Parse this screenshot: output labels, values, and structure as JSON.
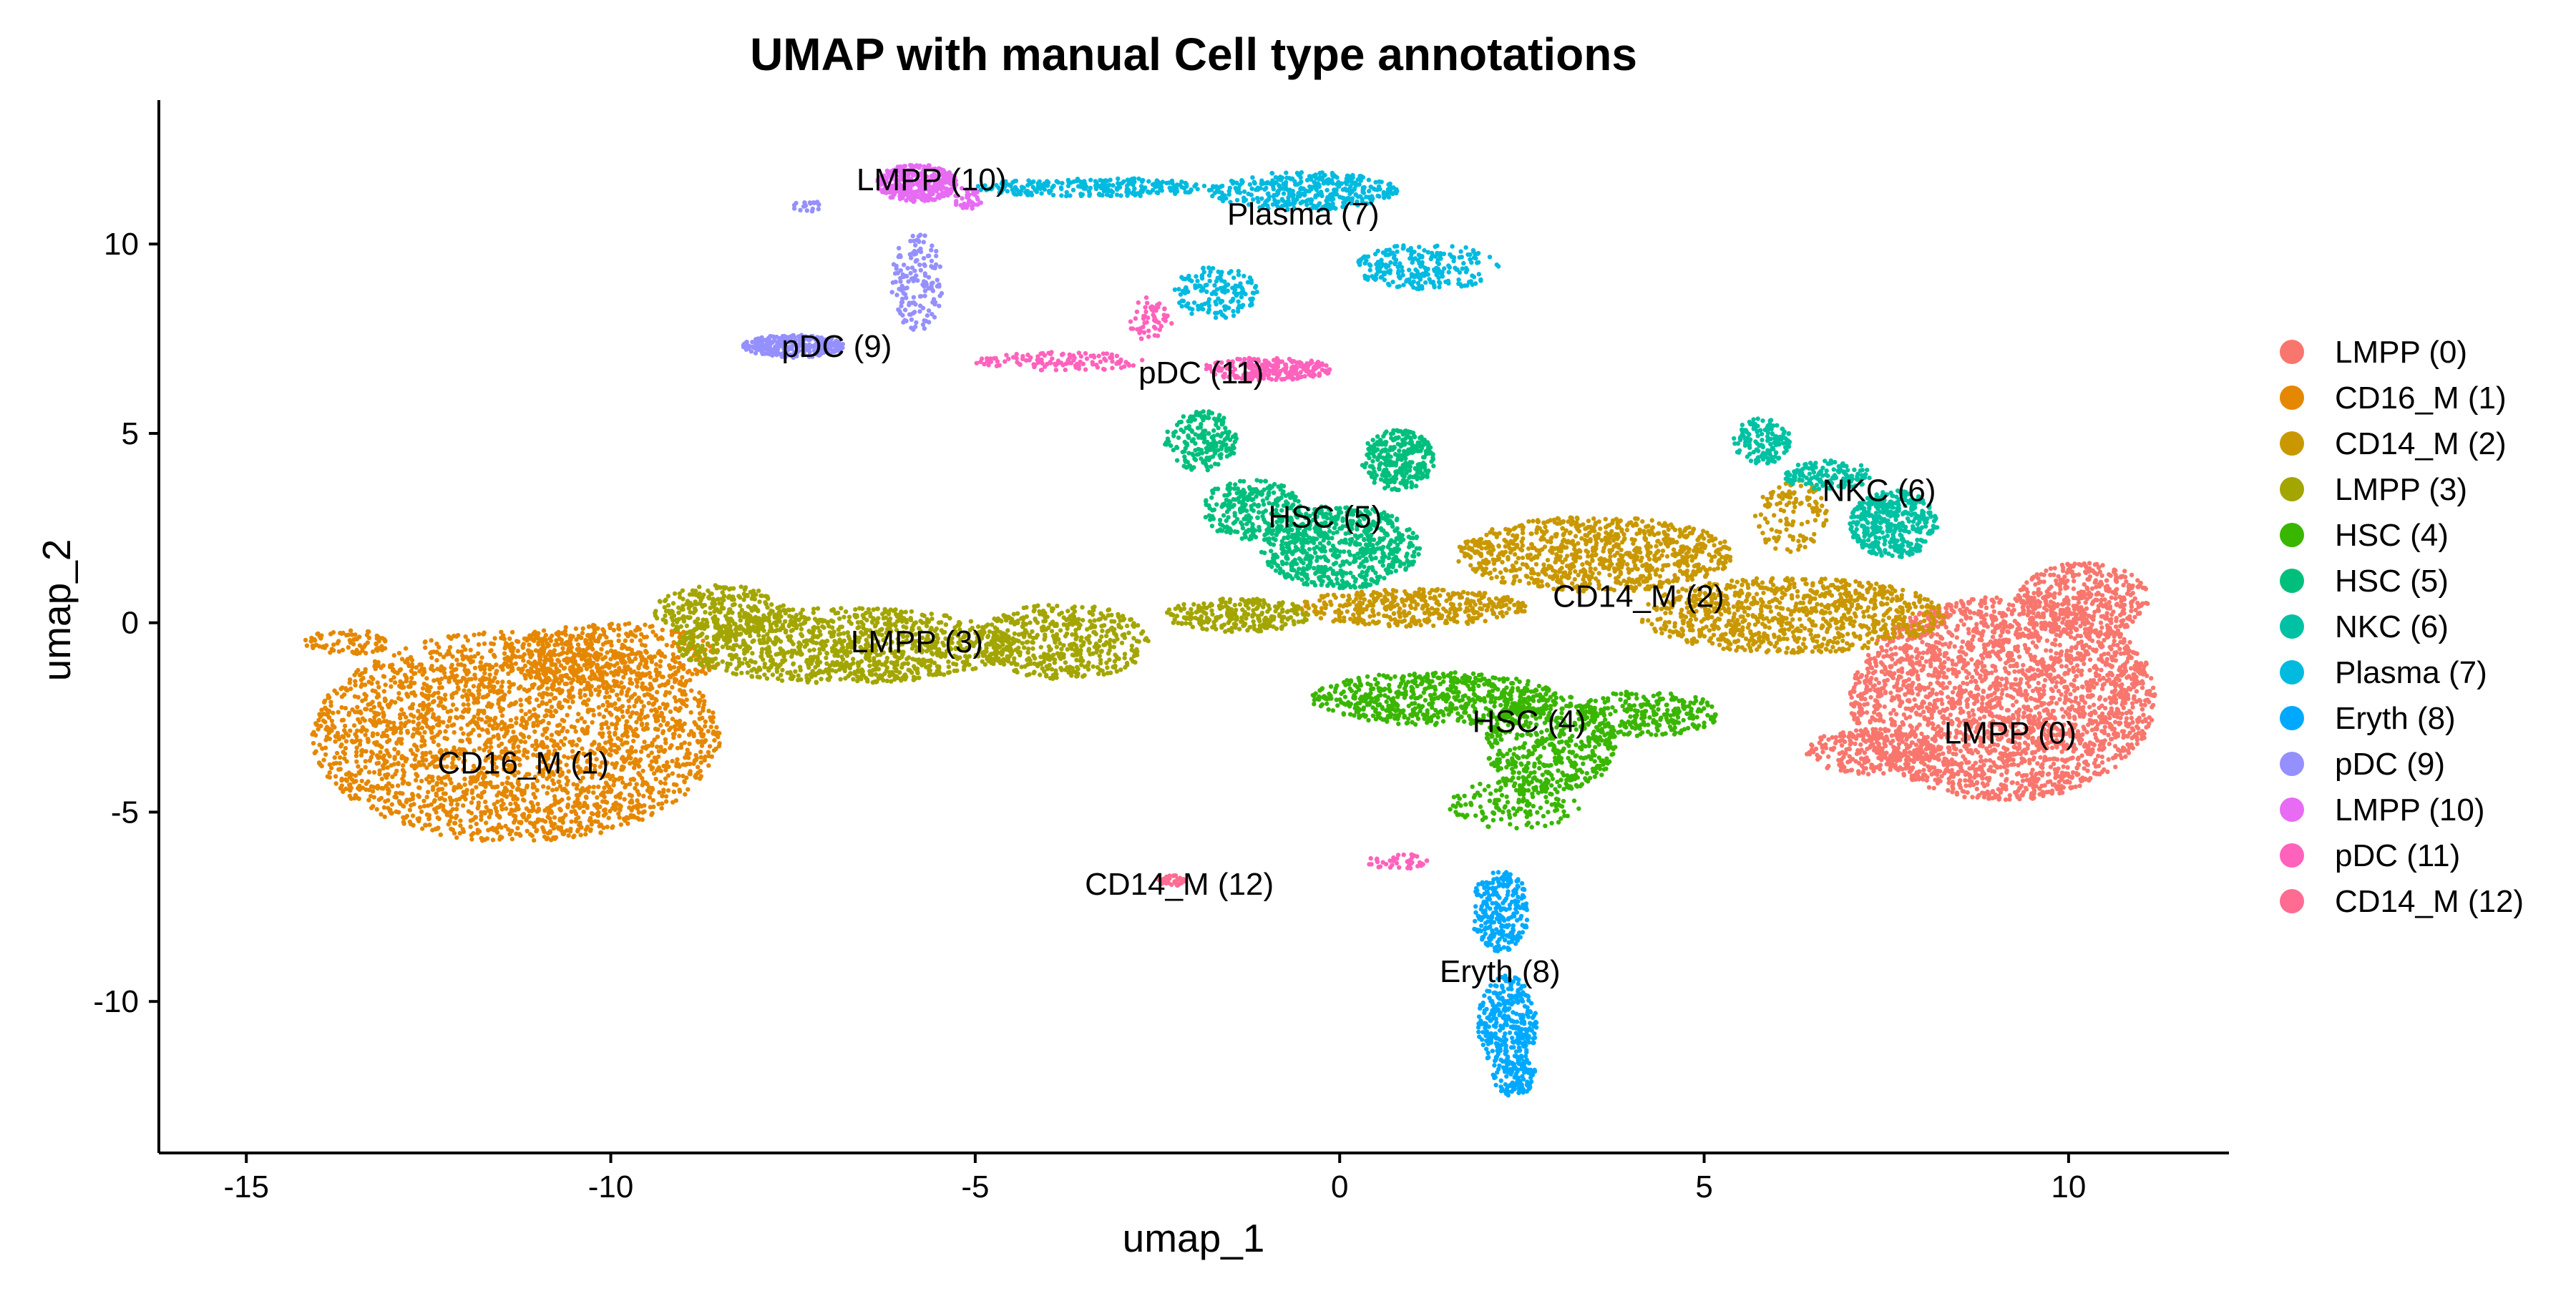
{
  "chart_data": {
    "type": "scatter",
    "title": "UMAP with manual Cell type annotations",
    "xlabel": "umap_1",
    "ylabel": "umap_2",
    "xlim": [
      -16.2,
      12.2
    ],
    "ylim": [
      -14.0,
      13.8
    ],
    "xticks": [
      -15,
      -10,
      -5,
      0,
      5,
      10
    ],
    "yticks": [
      -10,
      -5,
      0,
      5,
      10
    ],
    "xtick_labels": [
      "-15",
      "-10",
      "-5",
      "0",
      "5",
      "10"
    ],
    "ytick_labels": [
      "-10",
      "-5",
      "0",
      "5",
      "10"
    ],
    "grid": false,
    "legend_position": "right",
    "axis_color": "#000000",
    "series": [
      {
        "name": "LMPP (0)",
        "color": "#F8766D",
        "label_pos": [
          9.2,
          -2.9
        ],
        "blobs": [
          {
            "cx": 9.1,
            "cy": -2.0,
            "rx": 2.1,
            "ry": 2.7,
            "n": 2600
          },
          {
            "cx": 10.2,
            "cy": 0.6,
            "rx": 0.9,
            "ry": 1.0,
            "n": 400
          },
          {
            "cx": 7.3,
            "cy": -3.4,
            "rx": 0.9,
            "ry": 0.6,
            "n": 250
          }
        ]
      },
      {
        "name": "CD16_M (1)",
        "color": "#E58700",
        "label_pos": [
          -11.2,
          -3.7
        ],
        "blobs": [
          {
            "cx": -11.3,
            "cy": -3.0,
            "rx": 2.8,
            "ry": 2.8,
            "n": 2700
          },
          {
            "cx": -10.0,
            "cy": -0.9,
            "rx": 1.5,
            "ry": 0.9,
            "n": 400
          },
          {
            "cx": -13.6,
            "cy": -0.5,
            "rx": 0.6,
            "ry": 0.35,
            "n": 80
          }
        ]
      },
      {
        "name": "CD14_M (2)",
        "color": "#C99800",
        "label_pos": [
          4.1,
          0.7
        ],
        "blobs": [
          {
            "cx": 3.5,
            "cy": 1.8,
            "rx": 1.9,
            "ry": 1.0,
            "n": 900
          },
          {
            "cx": 6.2,
            "cy": 0.2,
            "rx": 2.1,
            "ry": 1.0,
            "n": 900
          },
          {
            "cx": 1.0,
            "cy": 0.4,
            "rx": 1.6,
            "ry": 0.5,
            "n": 400
          },
          {
            "cx": 6.2,
            "cy": 2.8,
            "rx": 0.5,
            "ry": 1.0,
            "n": 120
          }
        ]
      },
      {
        "name": "LMPP (3)",
        "color": "#A3A500",
        "label_pos": [
          -5.8,
          -0.5
        ],
        "blobs": [
          {
            "cx": -6.8,
            "cy": -0.6,
            "rx": 2.3,
            "ry": 1.0,
            "n": 1100
          },
          {
            "cx": -3.8,
            "cy": -0.5,
            "rx": 1.2,
            "ry": 1.0,
            "n": 500
          },
          {
            "cx": -8.5,
            "cy": 0.3,
            "rx": 0.9,
            "ry": 0.7,
            "n": 300
          },
          {
            "cx": -1.4,
            "cy": 0.2,
            "rx": 1.0,
            "ry": 0.45,
            "n": 250
          }
        ]
      },
      {
        "name": "HSC (4)",
        "color": "#39B600",
        "label_pos": [
          2.6,
          -2.6
        ],
        "blobs": [
          {
            "cx": 1.3,
            "cy": -2.0,
            "rx": 1.7,
            "ry": 0.7,
            "n": 600
          },
          {
            "cx": 2.9,
            "cy": -3.2,
            "rx": 0.9,
            "ry": 1.3,
            "n": 500
          },
          {
            "cx": 4.2,
            "cy": -2.4,
            "rx": 1.0,
            "ry": 0.6,
            "n": 250
          },
          {
            "cx": 2.4,
            "cy": -4.8,
            "rx": 0.9,
            "ry": 0.7,
            "n": 150
          }
        ]
      },
      {
        "name": "HSC (5)",
        "color": "#00BF7D",
        "label_pos": [
          -0.2,
          2.8
        ],
        "blobs": [
          {
            "cx": 0.0,
            "cy": 2.0,
            "rx": 1.1,
            "ry": 1.1,
            "n": 700
          },
          {
            "cx": 0.8,
            "cy": 4.3,
            "rx": 0.5,
            "ry": 0.8,
            "n": 300
          },
          {
            "cx": -1.9,
            "cy": 4.8,
            "rx": 0.5,
            "ry": 0.8,
            "n": 200
          },
          {
            "cx": -1.2,
            "cy": 3.0,
            "rx": 0.7,
            "ry": 0.8,
            "n": 250
          }
        ]
      },
      {
        "name": "NKC (6)",
        "color": "#00C1A3",
        "label_pos": [
          7.4,
          3.5
        ],
        "blobs": [
          {
            "cx": 7.6,
            "cy": 2.6,
            "rx": 0.6,
            "ry": 0.9,
            "n": 400
          },
          {
            "cx": 5.8,
            "cy": 4.8,
            "rx": 0.4,
            "ry": 0.6,
            "n": 150
          },
          {
            "cx": 6.7,
            "cy": 3.9,
            "rx": 0.6,
            "ry": 0.4,
            "n": 150
          }
        ]
      },
      {
        "name": "Plasma (7)",
        "color": "#00BAE0",
        "label_pos": [
          -0.5,
          10.8
        ],
        "blobs": [
          {
            "cx": -0.5,
            "cy": 11.4,
            "rx": 1.3,
            "ry": 0.5,
            "n": 400
          },
          {
            "cx": -3.4,
            "cy": 11.5,
            "rx": 1.6,
            "ry": 0.25,
            "n": 250
          },
          {
            "cx": 1.2,
            "cy": 9.4,
            "rx": 1.0,
            "ry": 0.6,
            "n": 250
          },
          {
            "cx": -1.7,
            "cy": 8.7,
            "rx": 0.6,
            "ry": 0.7,
            "n": 150
          }
        ]
      },
      {
        "name": "Eryth (8)",
        "color": "#00A9FF",
        "label_pos": [
          2.2,
          -9.2
        ],
        "blobs": [
          {
            "cx": 2.3,
            "cy": -10.6,
            "rx": 0.4,
            "ry": 1.3,
            "n": 350
          },
          {
            "cx": 2.2,
            "cy": -7.6,
            "rx": 0.4,
            "ry": 1.1,
            "n": 250
          },
          {
            "cx": 2.4,
            "cy": -12.0,
            "rx": 0.3,
            "ry": 0.5,
            "n": 100
          }
        ]
      },
      {
        "name": "pDC (9)",
        "color": "#9590FF",
        "label_pos": [
          -6.9,
          7.3
        ],
        "blobs": [
          {
            "cx": -7.5,
            "cy": 7.3,
            "rx": 0.7,
            "ry": 0.3,
            "n": 300
          },
          {
            "cx": -5.8,
            "cy": 9.0,
            "rx": 0.35,
            "ry": 1.3,
            "n": 150
          },
          {
            "cx": -7.3,
            "cy": 11.0,
            "rx": 0.2,
            "ry": 0.15,
            "n": 20
          }
        ]
      },
      {
        "name": "LMPP (10)",
        "color": "#E76BF3",
        "label_pos": [
          -5.6,
          11.7
        ],
        "blobs": [
          {
            "cx": -5.8,
            "cy": 11.6,
            "rx": 0.55,
            "ry": 0.5,
            "n": 400
          },
          {
            "cx": -5.1,
            "cy": 11.2,
            "rx": 0.2,
            "ry": 0.3,
            "n": 40
          }
        ]
      },
      {
        "name": "pDC (11)",
        "color": "#FF62BC",
        "label_pos": [
          -1.9,
          6.6
        ],
        "blobs": [
          {
            "cx": -1.0,
            "cy": 6.7,
            "rx": 0.9,
            "ry": 0.3,
            "n": 250
          },
          {
            "cx": -3.8,
            "cy": 6.9,
            "rx": 1.2,
            "ry": 0.25,
            "n": 120
          },
          {
            "cx": -2.6,
            "cy": 8.0,
            "rx": 0.3,
            "ry": 0.6,
            "n": 60
          },
          {
            "cx": 0.8,
            "cy": -6.3,
            "rx": 0.45,
            "ry": 0.2,
            "n": 40
          }
        ]
      },
      {
        "name": "CD14_M (12)",
        "color": "#FF6C91",
        "label_pos": [
          -2.2,
          -6.9
        ],
        "blobs": [
          {
            "cx": -2.3,
            "cy": -6.8,
            "rx": 0.2,
            "ry": 0.15,
            "n": 40
          }
        ]
      }
    ]
  }
}
